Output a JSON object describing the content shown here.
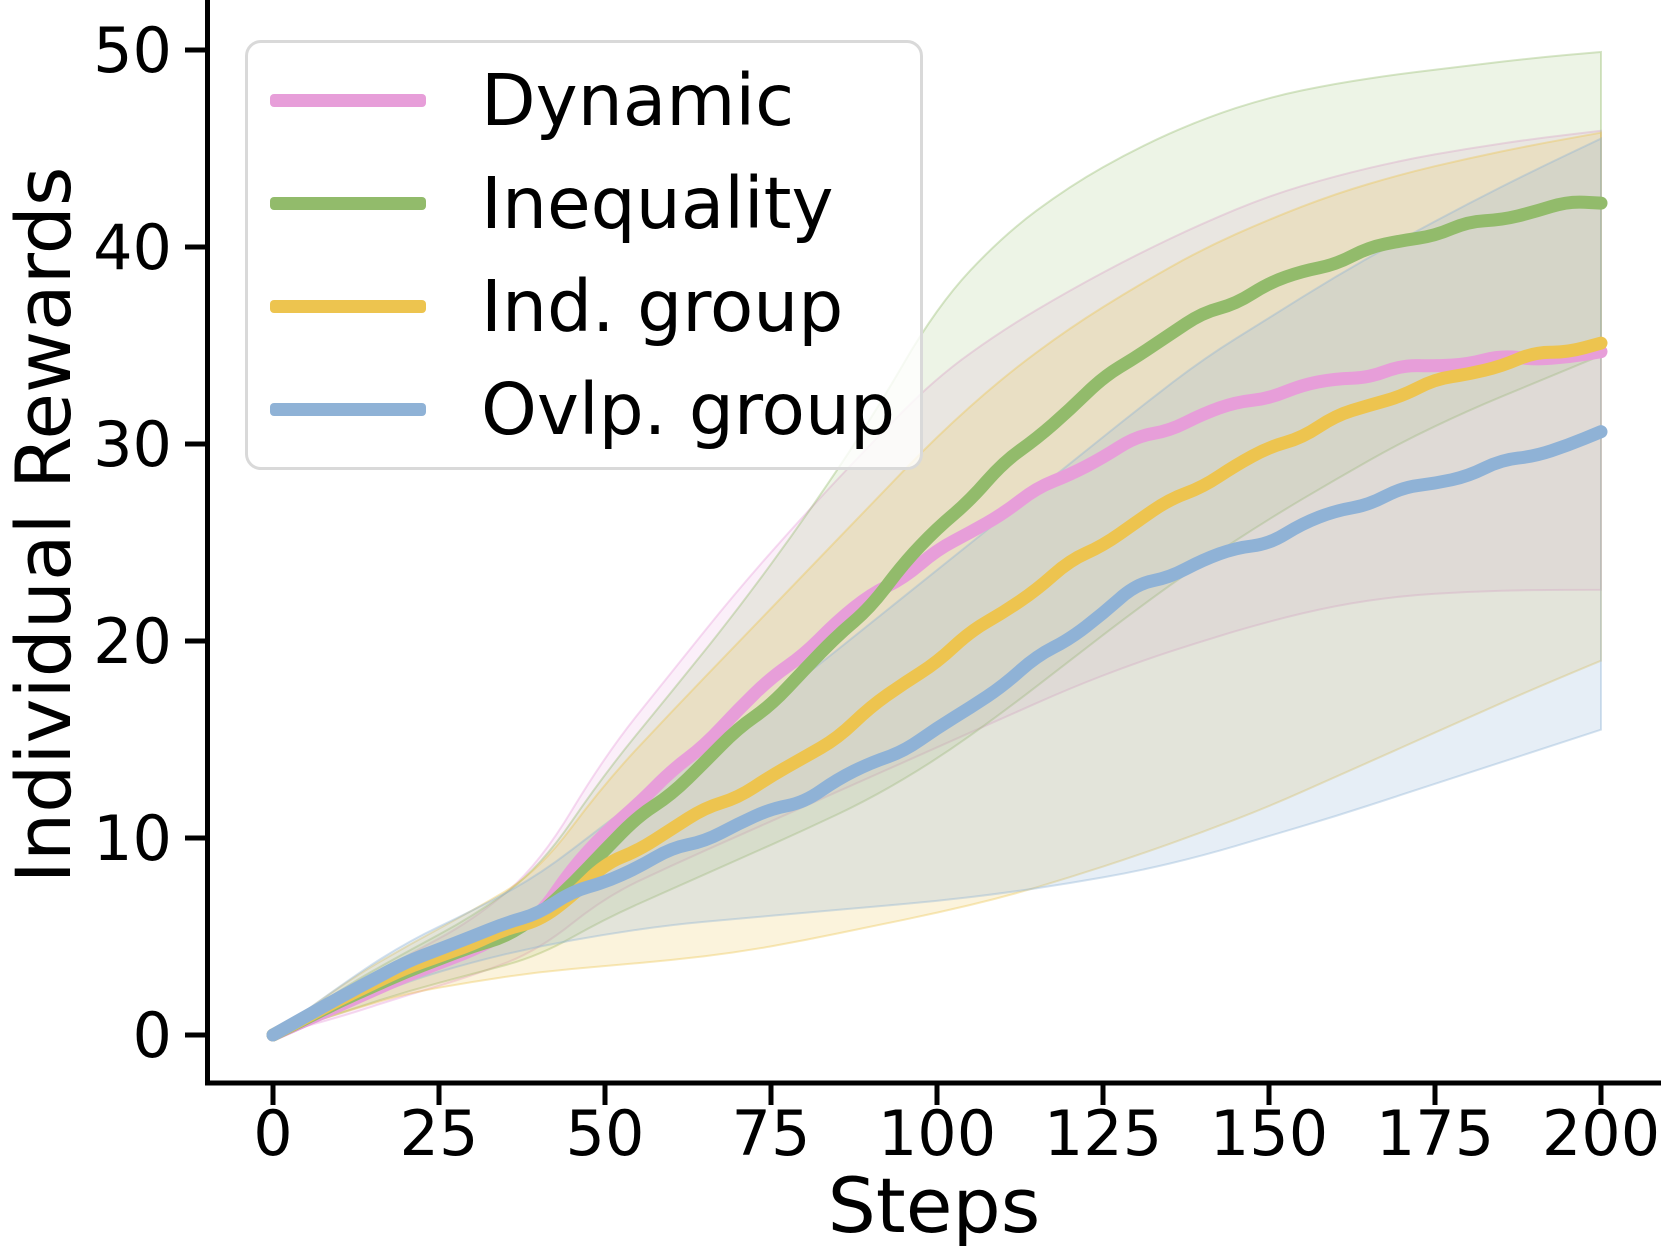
{
  "chart_data": {
    "type": "line",
    "title": "",
    "xlabel": "Steps",
    "ylabel": "Individual Rewards",
    "x_ticks": [
      0,
      25,
      50,
      75,
      100,
      125,
      150,
      175,
      200
    ],
    "y_ticks": [
      0,
      10,
      20,
      30,
      40,
      50
    ],
    "xlim": [
      0,
      200
    ],
    "ylim": [
      0,
      50
    ],
    "grid": false,
    "legend_position": "upper left",
    "x": [
      0,
      10,
      20,
      30,
      40,
      50,
      60,
      70,
      80,
      90,
      100,
      110,
      120,
      130,
      140,
      150,
      160,
      170,
      180,
      190,
      200
    ],
    "series": [
      {
        "name": "Dynamic",
        "color": "#e79ed9",
        "band_alpha": 0.16,
        "values": [
          0,
          1.5,
          3.0,
          4.3,
          6.2,
          10.4,
          13.2,
          16.4,
          19.4,
          22.2,
          24.4,
          26.6,
          28.6,
          30.3,
          31.6,
          32.6,
          33.3,
          33.8,
          34.1,
          34.3,
          34.4
        ],
        "band_low": [
          0,
          0.9,
          2.0,
          3.0,
          4.3,
          7.0,
          8.6,
          10.1,
          11.6,
          13.1,
          14.6,
          16.1,
          17.6,
          18.9,
          20.0,
          21.0,
          21.8,
          22.3,
          22.5,
          22.6,
          22.6
        ],
        "band_high": [
          0,
          2.1,
          4.0,
          5.8,
          8.6,
          14.2,
          18.4,
          22.6,
          26.4,
          30.0,
          33.4,
          35.8,
          37.8,
          39.6,
          41.2,
          42.6,
          43.6,
          44.4,
          45.0,
          45.5,
          45.9
        ]
      },
      {
        "name": "Inequality",
        "color": "#92bb6b",
        "band_alpha": 0.17,
        "values": [
          0,
          1.7,
          3.2,
          4.5,
          6.0,
          9.6,
          12.4,
          15.4,
          18.4,
          21.8,
          25.6,
          28.8,
          31.8,
          34.6,
          36.6,
          38.2,
          39.4,
          40.4,
          41.1,
          41.8,
          42.3
        ],
        "band_low": [
          0,
          1.1,
          2.2,
          3.1,
          4.0,
          5.9,
          7.4,
          8.9,
          10.4,
          12.0,
          14.0,
          16.4,
          19.0,
          21.6,
          24.0,
          26.2,
          28.2,
          30.1,
          31.7,
          33.1,
          34.5
        ],
        "band_high": [
          0,
          2.3,
          4.2,
          6.0,
          8.4,
          13.3,
          17.4,
          21.6,
          26.2,
          31.2,
          37.0,
          40.6,
          43.1,
          45.0,
          46.5,
          47.6,
          48.3,
          48.8,
          49.2,
          49.6,
          49.9
        ]
      },
      {
        "name": "Ind. group",
        "color": "#edc44f",
        "band_alpha": 0.2,
        "values": [
          0,
          1.8,
          3.4,
          4.6,
          5.9,
          8.6,
          10.6,
          12.3,
          14.0,
          16.5,
          19.0,
          21.4,
          23.8,
          26.0,
          28.0,
          29.8,
          31.4,
          32.7,
          33.7,
          34.5,
          35.1
        ],
        "band_low": [
          0,
          1.1,
          2.1,
          2.7,
          3.2,
          3.5,
          3.8,
          4.2,
          4.8,
          5.5,
          6.2,
          7.0,
          8.0,
          9.1,
          10.3,
          11.6,
          13.1,
          14.6,
          16.1,
          17.6,
          19.0
        ],
        "band_high": [
          0,
          2.5,
          4.5,
          6.3,
          8.3,
          12.8,
          16.4,
          19.9,
          23.4,
          26.9,
          30.4,
          33.4,
          35.9,
          38.0,
          39.9,
          41.4,
          42.7,
          43.7,
          44.5,
          45.2,
          45.8
        ]
      },
      {
        "name": "Ovlp. group",
        "color": "#8fb2d6",
        "band_alpha": 0.22,
        "values": [
          0,
          1.9,
          3.7,
          5.0,
          6.3,
          7.9,
          9.4,
          10.8,
          12.1,
          13.8,
          15.4,
          17.8,
          20.1,
          22.6,
          24.0,
          25.1,
          26.6,
          27.7,
          28.6,
          29.6,
          30.5
        ],
        "band_low": [
          0,
          1.3,
          2.7,
          3.7,
          4.5,
          5.1,
          5.6,
          5.9,
          6.2,
          6.5,
          6.8,
          7.2,
          7.7,
          8.3,
          9.1,
          10.1,
          11.1,
          12.2,
          13.3,
          14.4,
          15.5
        ],
        "band_high": [
          0,
          2.5,
          4.7,
          6.3,
          8.1,
          10.7,
          13.2,
          15.7,
          18.2,
          20.9,
          23.6,
          26.3,
          29.0,
          31.7,
          34.3,
          36.4,
          38.5,
          40.4,
          42.2,
          43.9,
          45.5
        ]
      }
    ]
  }
}
